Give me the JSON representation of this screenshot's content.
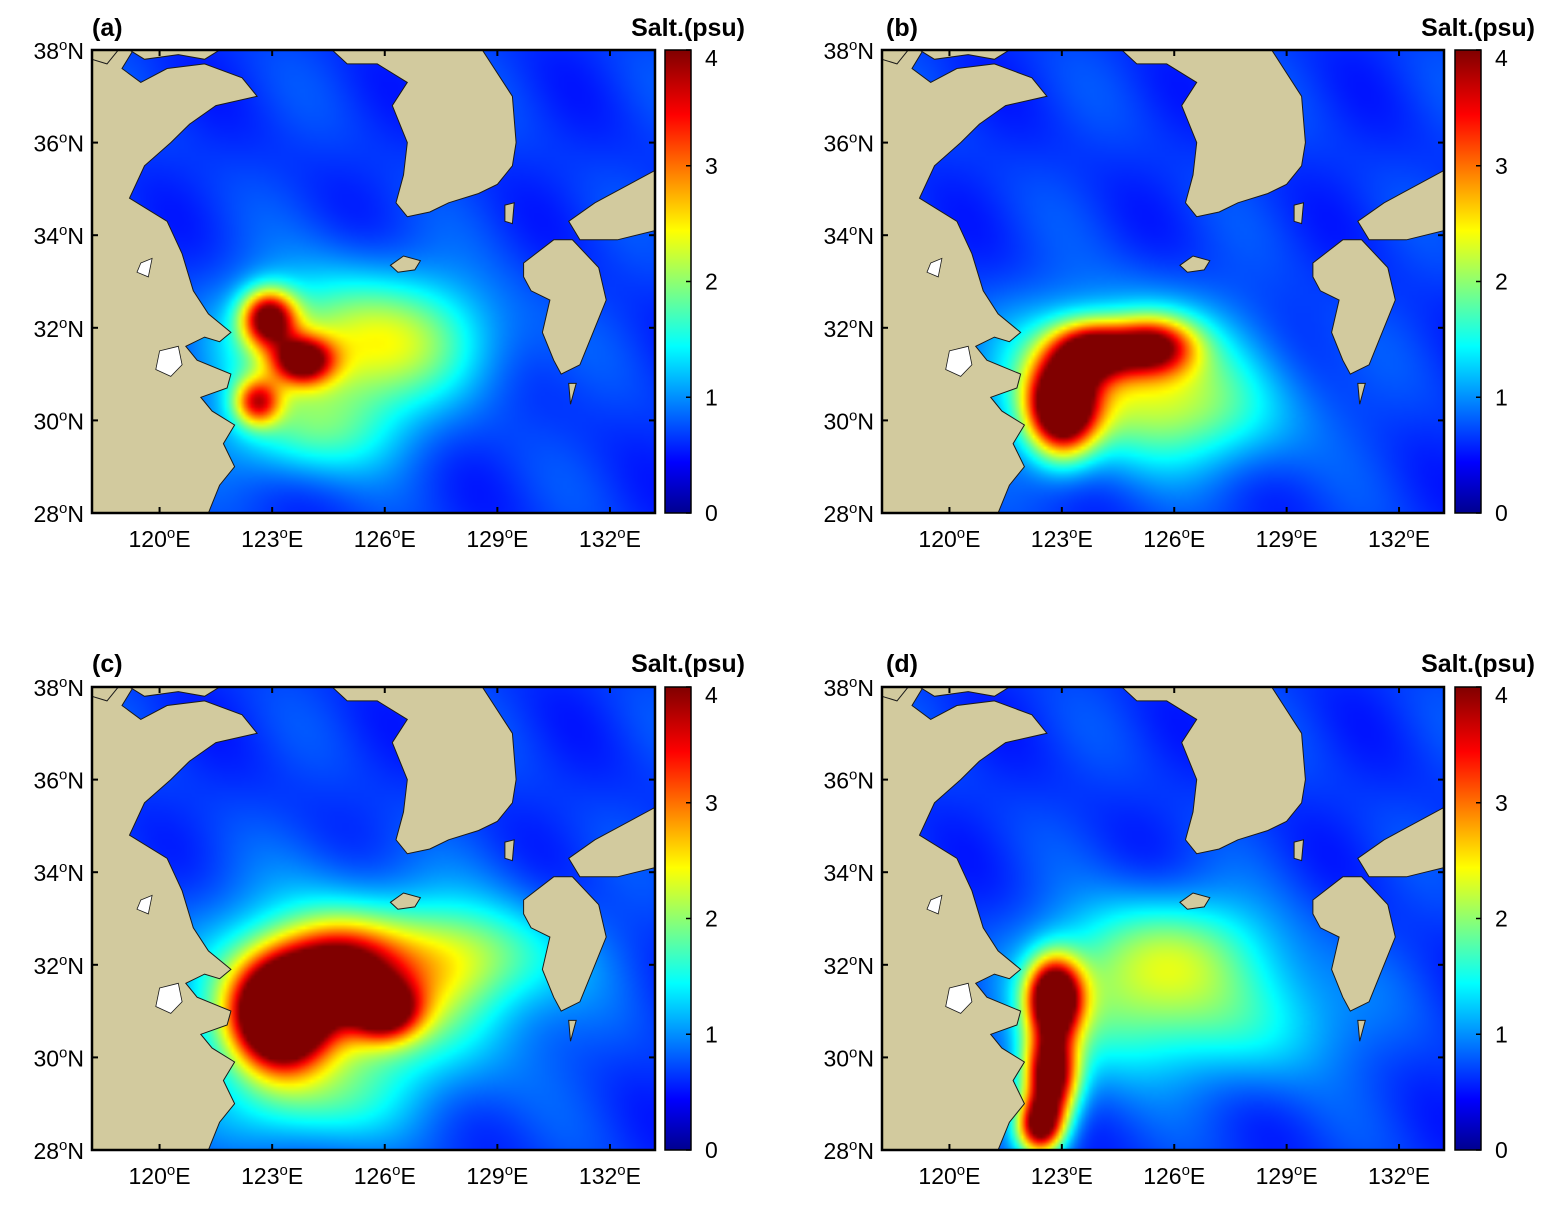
{
  "figure": {
    "colorbar_title": "Salt.(psu)",
    "colorbar_ticks": [
      "0",
      "1",
      "2",
      "3",
      "4"
    ],
    "colorbar_range": [
      0,
      4
    ],
    "colormap": "jet",
    "lat_ticks": [
      {
        "value": 28,
        "deg": "28",
        "hemi": "N"
      },
      {
        "value": 30,
        "deg": "30",
        "hemi": "N"
      },
      {
        "value": 32,
        "deg": "32",
        "hemi": "N"
      },
      {
        "value": 34,
        "deg": "34",
        "hemi": "N"
      },
      {
        "value": 36,
        "deg": "36",
        "hemi": "N"
      },
      {
        "value": 38,
        "deg": "38",
        "hemi": "N"
      }
    ],
    "lon_ticks": [
      {
        "value": 120,
        "deg": "120",
        "hemi": "E"
      },
      {
        "value": 123,
        "deg": "123",
        "hemi": "E"
      },
      {
        "value": 126,
        "deg": "126",
        "hemi": "E"
      },
      {
        "value": 129,
        "deg": "129",
        "hemi": "E"
      },
      {
        "value": 132,
        "deg": "132",
        "hemi": "E"
      }
    ],
    "lat_range": [
      28,
      38
    ],
    "lon_range": [
      118.2,
      133.2
    ],
    "degree_symbol": "o",
    "land_color": "#d2ca9e",
    "coast_color": "#1a1a1a",
    "panels": [
      {
        "label": "(a)",
        "plume": [
          {
            "lon": 122.9,
            "lat": 32.2,
            "amp": 3.4,
            "rx": 0.7,
            "ry": 0.6
          },
          {
            "lon": 123.8,
            "lat": 31.3,
            "amp": 3.1,
            "rx": 0.8,
            "ry": 0.5
          },
          {
            "lon": 122.6,
            "lat": 30.4,
            "amp": 2.4,
            "rx": 0.6,
            "ry": 0.5
          },
          {
            "lon": 124.5,
            "lat": 31.5,
            "amp": 1.5,
            "rx": 2.8,
            "ry": 1.6
          },
          {
            "lon": 126.8,
            "lat": 31.8,
            "amp": 0.9,
            "rx": 2.6,
            "ry": 1.3
          },
          {
            "lon": 124.0,
            "lat": 29.7,
            "amp": 0.9,
            "rx": 2.3,
            "ry": 1.0
          }
        ]
      },
      {
        "label": "(b)",
        "plume": [
          {
            "lon": 123.0,
            "lat": 30.3,
            "amp": 4.6,
            "rx": 0.9,
            "ry": 1.0
          },
          {
            "lon": 123.8,
            "lat": 31.5,
            "amp": 3.0,
            "rx": 1.0,
            "ry": 0.6
          },
          {
            "lon": 125.4,
            "lat": 31.6,
            "amp": 2.9,
            "rx": 1.1,
            "ry": 0.6
          },
          {
            "lon": 124.5,
            "lat": 31.0,
            "amp": 1.6,
            "rx": 3.3,
            "ry": 1.5
          },
          {
            "lon": 126.5,
            "lat": 30.0,
            "amp": 0.8,
            "rx": 2.8,
            "ry": 1.2
          }
        ]
      },
      {
        "label": "(c)",
        "plume": [
          {
            "lon": 123.2,
            "lat": 30.9,
            "amp": 5.2,
            "rx": 1.2,
            "ry": 1.1
          },
          {
            "lon": 124.7,
            "lat": 31.8,
            "amp": 2.9,
            "rx": 1.5,
            "ry": 1.0
          },
          {
            "lon": 126.0,
            "lat": 31.0,
            "amp": 2.7,
            "rx": 0.9,
            "ry": 0.6
          },
          {
            "lon": 125.0,
            "lat": 31.3,
            "amp": 1.9,
            "rx": 4.0,
            "ry": 2.0
          },
          {
            "lon": 128.2,
            "lat": 32.2,
            "amp": 1.1,
            "rx": 2.6,
            "ry": 1.1
          },
          {
            "lon": 123.8,
            "lat": 29.0,
            "amp": 0.8,
            "rx": 2.2,
            "ry": 1.0
          }
        ]
      },
      {
        "label": "(d)",
        "plume": [
          {
            "lon": 122.8,
            "lat": 31.3,
            "amp": 4.4,
            "rx": 0.7,
            "ry": 0.8
          },
          {
            "lon": 122.7,
            "lat": 29.6,
            "amp": 4.3,
            "rx": 0.7,
            "ry": 1.0
          },
          {
            "lon": 122.4,
            "lat": 28.5,
            "amp": 3.4,
            "rx": 0.6,
            "ry": 0.6
          },
          {
            "lon": 124.5,
            "lat": 31.2,
            "amp": 1.4,
            "rx": 2.6,
            "ry": 1.6
          },
          {
            "lon": 126.2,
            "lat": 32.4,
            "amp": 1.0,
            "rx": 2.6,
            "ry": 1.2
          },
          {
            "lon": 128.5,
            "lat": 30.8,
            "amp": 0.8,
            "rx": 2.4,
            "ry": 1.4
          }
        ]
      }
    ]
  }
}
